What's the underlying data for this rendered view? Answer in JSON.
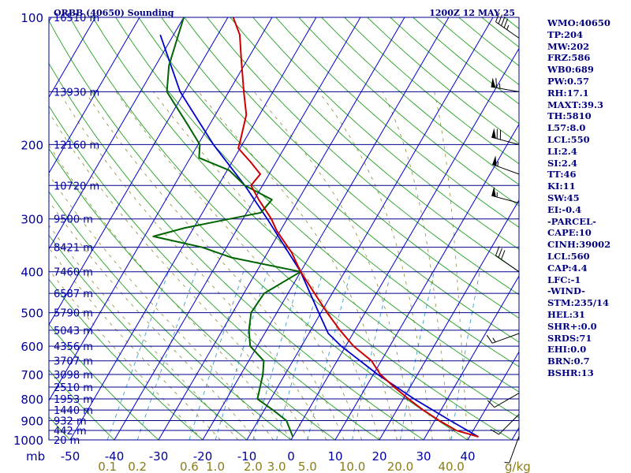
{
  "header": {
    "station": "ORBB (40650) Sounding",
    "time": "1200Z 12 MAY 25"
  },
  "indices": [
    "WMO:40650",
    "TP:204",
    "MW:202",
    "FRZ:586",
    "WB0:689",
    "PW:0.57",
    "RH:17.1",
    "MAXT:39.3",
    "TH:5810",
    "L57:8.0",
    "LCL:550",
    "LI:2.4",
    "SI:2.4",
    "TT:46",
    "KI:11",
    "SW:45",
    "EI:-0.4",
    "-PARCEL-",
    "CAPE:10",
    "CINH:39002",
    "LCL:560",
    "CAP:4.4",
    "LFC:-1",
    "-WIND-",
    "STM:235/14",
    "HEL:31",
    "SHR+:0.0",
    "SRDS:71",
    "EHI:0.0",
    "BRN:0.7",
    "BSHR:13"
  ],
  "colors": {
    "isobar": "#00008b",
    "isotherm": "#0000cd",
    "dry_adiabat": "#22a022",
    "moist_adiabat": "#8c8c3c",
    "mixing_ratio": "#3aa0c8",
    "temperature": "#cc0000",
    "dewpoint": "#006400",
    "parcel": "#0000cc",
    "axis_text": "#0000a0",
    "mixing_text": "#8b7d1a",
    "index_text": "#000080"
  },
  "chart_data": {
    "type": "skew-t log-p",
    "pressure_axis": {
      "label": "mb",
      "ticks": [
        100,
        200,
        300,
        400,
        500,
        600,
        700,
        800,
        900,
        1000
      ],
      "range": [
        100,
        1000
      ],
      "scale": "log"
    },
    "temperature_axis": {
      "ticks": [
        -50,
        -40,
        -30,
        -20,
        -10,
        0,
        10,
        20,
        30,
        40
      ],
      "unit": "C"
    },
    "mixing_ratio_axis": {
      "unit": "g/kg",
      "ticks": [
        {
          "label": "0.1",
          "value": 0.1
        },
        {
          "label": "0.2",
          "value": 0.2
        },
        {
          "label": "0.6",
          "value": 0.6
        },
        {
          "label": "1.0",
          "value": 1.0
        },
        {
          "label": "2.0",
          "value": 2.0
        },
        {
          "label": "3.0",
          "value": 3.0
        },
        {
          "label": "5.0",
          "value": 5.0
        },
        {
          "label": "10.0",
          "value": 10.0
        },
        {
          "label": "20.0",
          "value": 20.0
        },
        {
          "label": "40.0",
          "value": 40.0
        }
      ]
    },
    "height_labels": [
      {
        "p": 100,
        "label": "16510 m"
      },
      {
        "p": 150,
        "label": "13930 m"
      },
      {
        "p": 200,
        "label": "12160 m"
      },
      {
        "p": 250,
        "label": "10720 m"
      },
      {
        "p": 300,
        "label": "9500 m"
      },
      {
        "p": 350,
        "label": "8421 m"
      },
      {
        "p": 400,
        "label": "7460 m"
      },
      {
        "p": 450,
        "label": "6587 m"
      },
      {
        "p": 500,
        "label": "5790 m"
      },
      {
        "p": 550,
        "label": "5043 m"
      },
      {
        "p": 600,
        "label": "4356 m"
      },
      {
        "p": 650,
        "label": "3707 m"
      },
      {
        "p": 700,
        "label": "3098 m"
      },
      {
        "p": 750,
        "label": "2510 m"
      },
      {
        "p": 800,
        "label": "1953 m"
      },
      {
        "p": 850,
        "label": "1440 m"
      },
      {
        "p": 900,
        "label": "932 m"
      },
      {
        "p": 950,
        "label": "442 m"
      },
      {
        "p": 1000,
        "label": "20 m"
      }
    ],
    "temperature_profile": [
      {
        "p": 983,
        "t": 42.0
      },
      {
        "p": 950,
        "t": 36.2
      },
      {
        "p": 900,
        "t": 31.0
      },
      {
        "p": 850,
        "t": 26.0
      },
      {
        "p": 800,
        "t": 21.2
      },
      {
        "p": 750,
        "t": 16.4
      },
      {
        "p": 700,
        "t": 11.6
      },
      {
        "p": 650,
        "t": 7.8
      },
      {
        "p": 600,
        "t": 1.8
      },
      {
        "p": 550,
        "t": -3.4
      },
      {
        "p": 500,
        "t": -8.6
      },
      {
        "p": 450,
        "t": -14.0
      },
      {
        "p": 400,
        "t": -20.0
      },
      {
        "p": 360,
        "t": -24.6
      },
      {
        "p": 320,
        "t": -30.8
      },
      {
        "p": 300,
        "t": -33.6
      },
      {
        "p": 270,
        "t": -39.0
      },
      {
        "p": 250,
        "t": -42.6
      },
      {
        "p": 235,
        "t": -42.0
      },
      {
        "p": 220,
        "t": -45.8
      },
      {
        "p": 204,
        "t": -50.4
      },
      {
        "p": 195,
        "t": -51.0
      },
      {
        "p": 170,
        "t": -53.0
      },
      {
        "p": 150,
        "t": -56.6
      },
      {
        "p": 125,
        "t": -61.6
      },
      {
        "p": 110,
        "t": -65.0
      },
      {
        "p": 100,
        "t": -68.8
      }
    ],
    "dewpoint_profile": [
      {
        "p": 983,
        "td": 0.0
      },
      {
        "p": 900,
        "td": -3.6
      },
      {
        "p": 850,
        "td": -8.0
      },
      {
        "p": 800,
        "td": -13.0
      },
      {
        "p": 700,
        "td": -15.0
      },
      {
        "p": 650,
        "td": -16.6
      },
      {
        "p": 600,
        "td": -21.6
      },
      {
        "p": 550,
        "td": -24.0
      },
      {
        "p": 500,
        "td": -25.8
      },
      {
        "p": 450,
        "td": -25.4
      },
      {
        "p": 400,
        "td": -20.0
      },
      {
        "p": 370,
        "td": -37.6
      },
      {
        "p": 350,
        "td": -45.6
      },
      {
        "p": 330,
        "td": -58.0
      },
      {
        "p": 315,
        "td": -52.0
      },
      {
        "p": 290,
        "td": -36.8
      },
      {
        "p": 270,
        "td": -36.0
      },
      {
        "p": 250,
        "td": -44.0
      },
      {
        "p": 230,
        "td": -49.6
      },
      {
        "p": 215,
        "td": -58.0
      },
      {
        "p": 200,
        "td": -59.6
      },
      {
        "p": 180,
        "td": -64.8
      },
      {
        "p": 150,
        "td": -74.0
      },
      {
        "p": 130,
        "td": -77.0
      },
      {
        "p": 100,
        "td": -80.0
      }
    ],
    "parcel_profile": [
      {
        "p": 983,
        "t": 42.0
      },
      {
        "p": 900,
        "t": 33.5
      },
      {
        "p": 800,
        "t": 22.5
      },
      {
        "p": 700,
        "t": 11.0
      },
      {
        "p": 600,
        "t": -1.0
      },
      {
        "p": 560,
        "t": -5.6
      },
      {
        "p": 500,
        "t": -10.5
      },
      {
        "p": 400,
        "t": -20.0
      },
      {
        "p": 300,
        "t": -34.5
      },
      {
        "p": 250,
        "t": -44.0
      },
      {
        "p": 200,
        "t": -56.5
      },
      {
        "p": 150,
        "t": -71.0
      },
      {
        "p": 110,
        "t": -83.0
      }
    ],
    "wind_barbs": [
      {
        "p": 112,
        "dir": 305,
        "speed": 45
      },
      {
        "p": 150,
        "dir": 280,
        "speed": 65
      },
      {
        "p": 200,
        "dir": 285,
        "speed": 70
      },
      {
        "p": 235,
        "dir": 290,
        "speed": 55
      },
      {
        "p": 275,
        "dir": 285,
        "speed": 55
      },
      {
        "p": 400,
        "dir": 305,
        "speed": 30
      },
      {
        "p": 560,
        "dir": 250,
        "speed": 15
      },
      {
        "p": 775,
        "dir": 240,
        "speed": 10
      },
      {
        "p": 870,
        "dir": 225,
        "speed": 10
      },
      {
        "p": 980,
        "dir": 200,
        "speed": 5
      }
    ]
  }
}
